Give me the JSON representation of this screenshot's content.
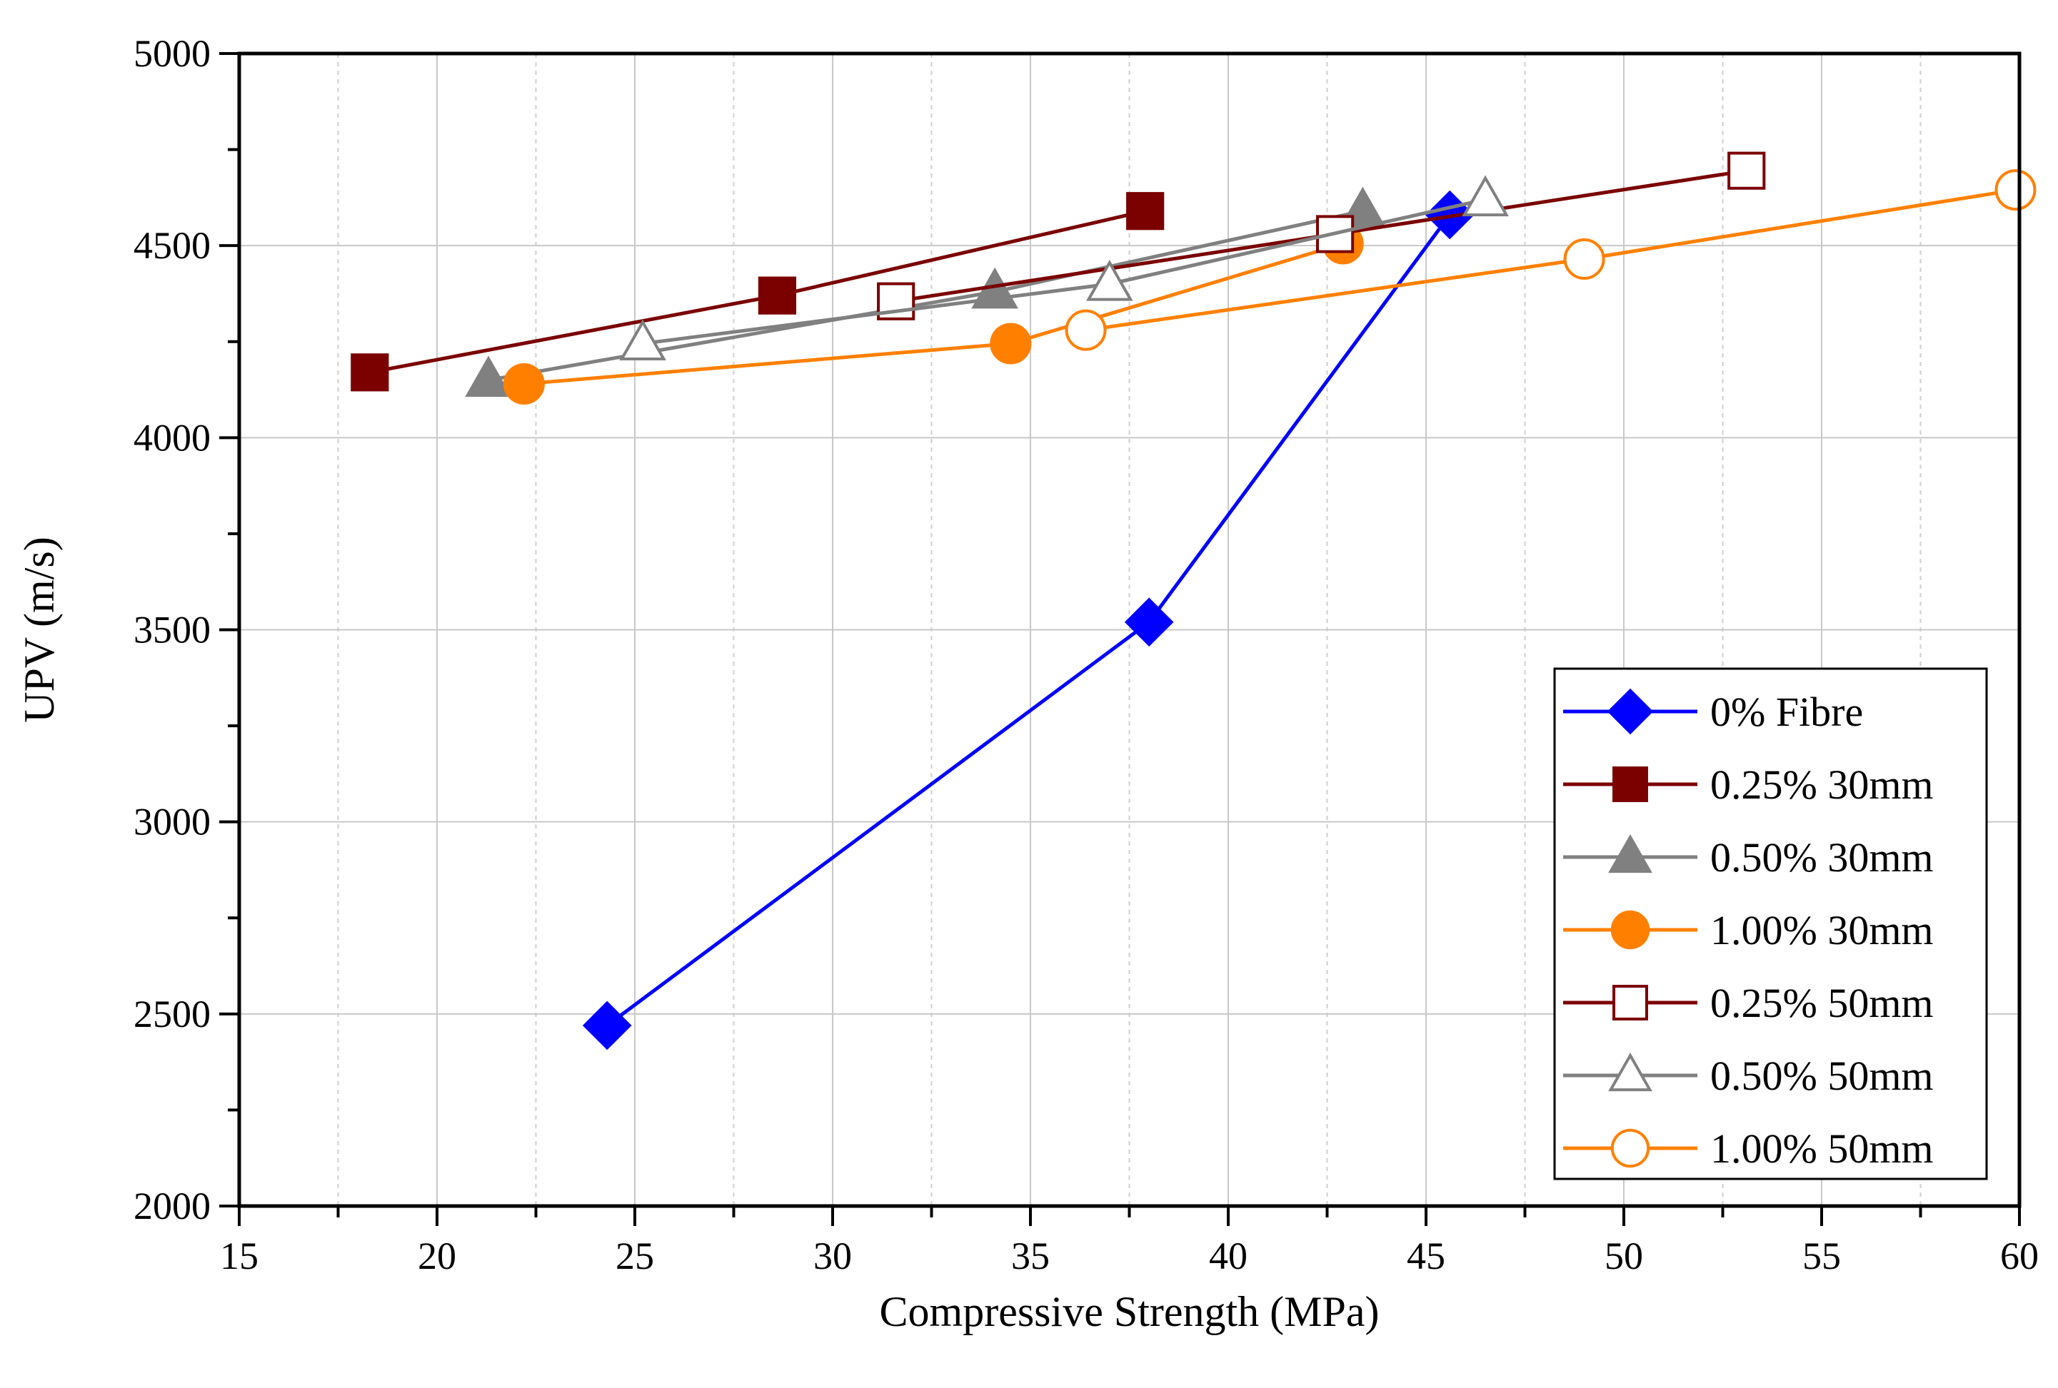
{
  "chart_data": {
    "type": "line",
    "title": "",
    "xlabel": "Compressive Strength (MPa)",
    "ylabel": "UPV (m/s)",
    "xlim": [
      15,
      60
    ],
    "ylim": [
      2000,
      5000
    ],
    "x_ticks": [
      15,
      20,
      25,
      30,
      35,
      40,
      45,
      50,
      55,
      60
    ],
    "y_ticks": [
      2000,
      2500,
      3000,
      3500,
      4000,
      4500,
      5000
    ],
    "x_tick_labels": [
      "15",
      "20",
      "25",
      "30",
      "35",
      "40",
      "45",
      "50",
      "55",
      "60"
    ],
    "y_tick_labels": [
      "2000",
      "2500",
      "3000",
      "3500",
      "4000",
      "4500",
      "5000"
    ],
    "grid": true,
    "legend_position": "bottom-right",
    "series": [
      {
        "name": "0% Fibre",
        "color": "#0000ff",
        "marker": "diamond",
        "filled": true,
        "points": [
          [
            24.3,
            2470
          ],
          [
            38.0,
            3520
          ],
          [
            45.6,
            4580
          ]
        ]
      },
      {
        "name": "0.25% 30mm",
        "color": "#7b0000",
        "marker": "square",
        "filled": true,
        "points": [
          [
            18.3,
            4170
          ],
          [
            28.6,
            4370
          ],
          [
            37.9,
            4590
          ]
        ]
      },
      {
        "name": "0.50% 30mm",
        "color": "#808080",
        "marker": "triangle",
        "filled": true,
        "points": [
          [
            21.3,
            4150
          ],
          [
            34.1,
            4380
          ],
          [
            43.4,
            4590
          ]
        ]
      },
      {
        "name": "1.00% 30mm",
        "color": "#ff8000",
        "marker": "circle",
        "filled": true,
        "points": [
          [
            22.2,
            4140
          ],
          [
            34.5,
            4245
          ],
          [
            42.9,
            4505
          ]
        ]
      },
      {
        "name": "0.25% 50mm",
        "color": "#7b0000",
        "marker": "square",
        "filled": false,
        "points": [
          [
            31.6,
            4355
          ],
          [
            42.7,
            4530
          ],
          [
            53.1,
            4695
          ]
        ]
      },
      {
        "name": "0.50% 50mm",
        "color": "#808080",
        "marker": "triangle",
        "filled": false,
        "points": [
          [
            25.2,
            4245
          ],
          [
            37.0,
            4400
          ],
          [
            46.5,
            4620
          ]
        ]
      },
      {
        "name": "1.00% 50mm",
        "color": "#ff8000",
        "marker": "circle",
        "filled": false,
        "points": [
          [
            36.4,
            4280
          ],
          [
            49.0,
            4465
          ],
          [
            59.9,
            4645
          ]
        ]
      }
    ]
  }
}
